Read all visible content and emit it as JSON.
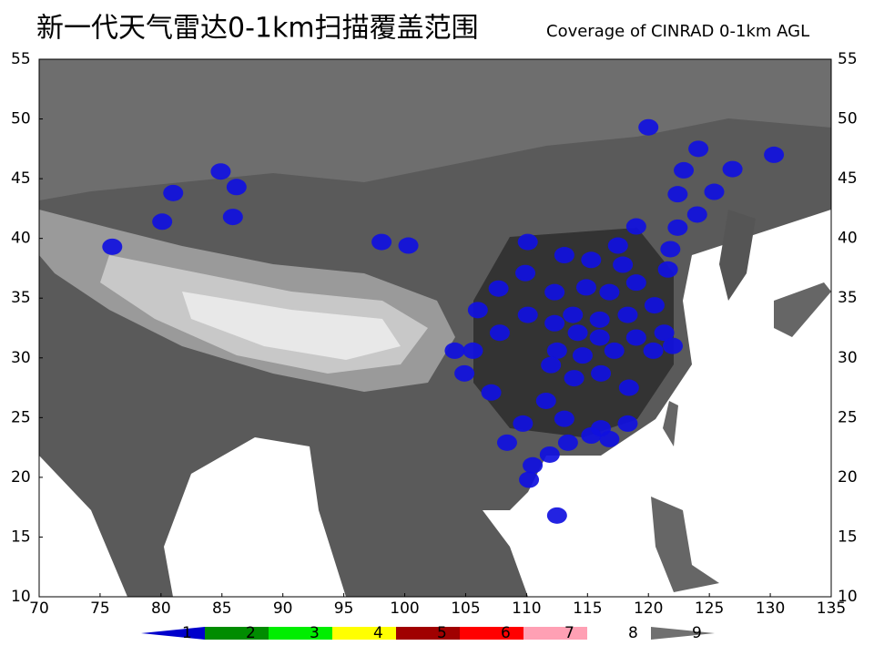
{
  "map": {
    "title": "新一代天气雷达0-1km扫描覆盖范围",
    "subtitle": "Coverage of CINRAD 0-1km AGL",
    "lonlim": [
      70,
      135
    ],
    "latlim": [
      10,
      55
    ],
    "lon_ticks": [
      70,
      75,
      80,
      85,
      90,
      95,
      100,
      105,
      110,
      115,
      120,
      125,
      130,
      135
    ],
    "lat_ticks": [
      55,
      50,
      45,
      40,
      35,
      30,
      25,
      20,
      15,
      10
    ],
    "legend": [
      {
        "label": "1",
        "color": "#0000cc"
      },
      {
        "label": "2",
        "color": "#008c00"
      },
      {
        "label": "3",
        "color": "#00ee00"
      },
      {
        "label": "4",
        "color": "#ffff00"
      },
      {
        "label": "5",
        "color": "#a00000"
      },
      {
        "label": "6",
        "color": "#ff0000"
      },
      {
        "label": "7",
        "color": "#ffa0b4"
      },
      {
        "label": "8",
        "color": "#ffffff"
      },
      {
        "label": "9",
        "color": "#707070"
      }
    ],
    "radar_sites": [
      [
        120.0,
        49.3
      ],
      [
        124.1,
        47.5
      ],
      [
        122.9,
        45.7
      ],
      [
        126.9,
        45.8
      ],
      [
        130.3,
        47.0
      ],
      [
        125.4,
        43.9
      ],
      [
        122.4,
        43.7
      ],
      [
        124.0,
        42.0
      ],
      [
        122.4,
        40.9
      ],
      [
        121.8,
        39.1
      ],
      [
        119.0,
        41.0
      ],
      [
        117.5,
        39.4
      ],
      [
        117.9,
        37.8
      ],
      [
        115.3,
        38.2
      ],
      [
        113.1,
        38.6
      ],
      [
        110.1,
        39.7
      ],
      [
        121.6,
        37.4
      ],
      [
        119.0,
        36.3
      ],
      [
        116.8,
        35.5
      ],
      [
        114.9,
        35.9
      ],
      [
        112.3,
        35.5
      ],
      [
        109.9,
        37.1
      ],
      [
        107.7,
        35.8
      ],
      [
        106.0,
        34.0
      ],
      [
        113.8,
        33.6
      ],
      [
        116.0,
        33.2
      ],
      [
        118.3,
        33.6
      ],
      [
        120.5,
        34.4
      ],
      [
        121.3,
        32.1
      ],
      [
        119.0,
        31.7
      ],
      [
        116.0,
        31.7
      ],
      [
        114.2,
        32.1
      ],
      [
        112.3,
        32.9
      ],
      [
        110.1,
        33.6
      ],
      [
        107.8,
        32.1
      ],
      [
        105.6,
        30.6
      ],
      [
        104.1,
        30.6
      ],
      [
        112.5,
        30.6
      ],
      [
        114.6,
        30.2
      ],
      [
        117.2,
        30.6
      ],
      [
        120.4,
        30.6
      ],
      [
        122.0,
        31.0
      ],
      [
        112.0,
        29.4
      ],
      [
        113.9,
        28.3
      ],
      [
        116.1,
        28.7
      ],
      [
        118.4,
        27.5
      ],
      [
        111.6,
        26.4
      ],
      [
        109.7,
        24.5
      ],
      [
        113.1,
        24.9
      ],
      [
        116.1,
        24.1
      ],
      [
        118.3,
        24.5
      ],
      [
        108.4,
        22.9
      ],
      [
        111.9,
        21.9
      ],
      [
        113.4,
        22.9
      ],
      [
        115.3,
        23.5
      ],
      [
        116.8,
        23.2
      ],
      [
        110.5,
        21.0
      ],
      [
        110.2,
        19.8
      ],
      [
        112.5,
        16.8
      ],
      [
        104.9,
        28.7
      ],
      [
        107.1,
        27.1
      ],
      [
        84.9,
        45.6
      ],
      [
        86.2,
        44.3
      ],
      [
        81.0,
        43.8
      ],
      [
        80.1,
        41.4
      ],
      [
        85.9,
        41.8
      ],
      [
        76.0,
        39.3
      ],
      [
        98.1,
        39.7
      ],
      [
        100.3,
        39.4
      ]
    ]
  }
}
